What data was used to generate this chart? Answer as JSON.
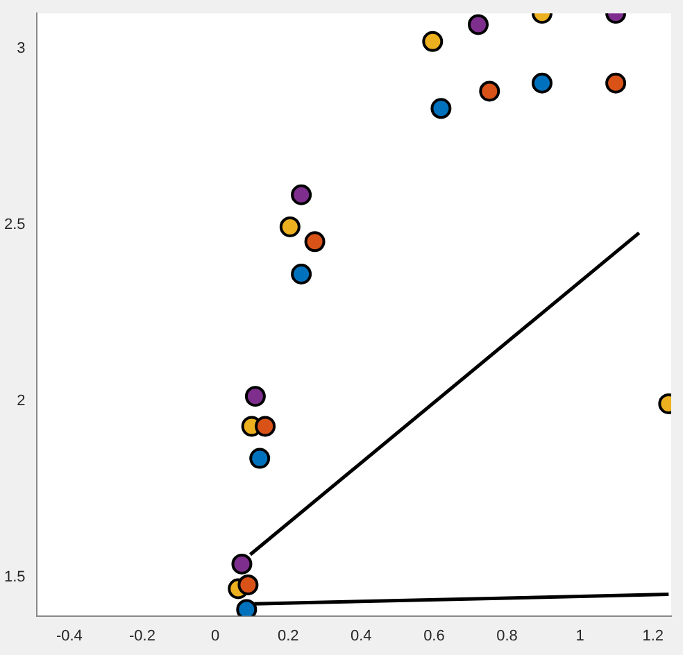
{
  "chart_data": {
    "type": "scatter",
    "xlim": [
      -0.49,
      1.25
    ],
    "ylim": [
      1.39,
      3.1
    ],
    "xticks": [
      -0.4,
      -0.2,
      0,
      0.2,
      0.4,
      0.6,
      0.8,
      1,
      1.2
    ],
    "yticks": [
      1.5,
      2,
      2.5,
      3
    ],
    "grid": false,
    "legend": false,
    "marker": "circle",
    "series": [
      {
        "type": "scatter",
        "color": "#0072bd",
        "x": [
          0.086,
          0.122,
          0.236,
          0.619,
          0.896
        ],
        "values": [
          1.408,
          1.837,
          2.36,
          2.83,
          2.902
        ]
      },
      {
        "type": "scatter",
        "color": "#d95319",
        "x": [
          0.09,
          0.137,
          0.273,
          0.752,
          1.098
        ],
        "values": [
          1.478,
          1.928,
          2.452,
          2.879,
          2.902
        ]
      },
      {
        "type": "scatter",
        "color": "#edb120",
        "x": [
          0.063,
          0.1,
          0.205,
          0.596,
          0.896,
          1.243
        ],
        "values": [
          1.467,
          1.928,
          2.494,
          3.02,
          3.1,
          1.992
        ]
      },
      {
        "type": "scatter",
        "color": "#7e2f8e",
        "x": [
          0.073,
          0.11,
          0.236,
          0.721,
          1.098
        ],
        "values": [
          1.537,
          2.013,
          2.585,
          3.068,
          3.1
        ]
      },
      {
        "type": "line",
        "color": "#000000",
        "marker": "none",
        "x": [
          0.096,
          1.162
        ],
        "values": [
          1.564,
          2.477
        ]
      },
      {
        "type": "line",
        "color": "#000000",
        "marker": "none",
        "x": [
          0.107,
          1.243
        ],
        "values": [
          1.424,
          1.451
        ]
      }
    ]
  }
}
